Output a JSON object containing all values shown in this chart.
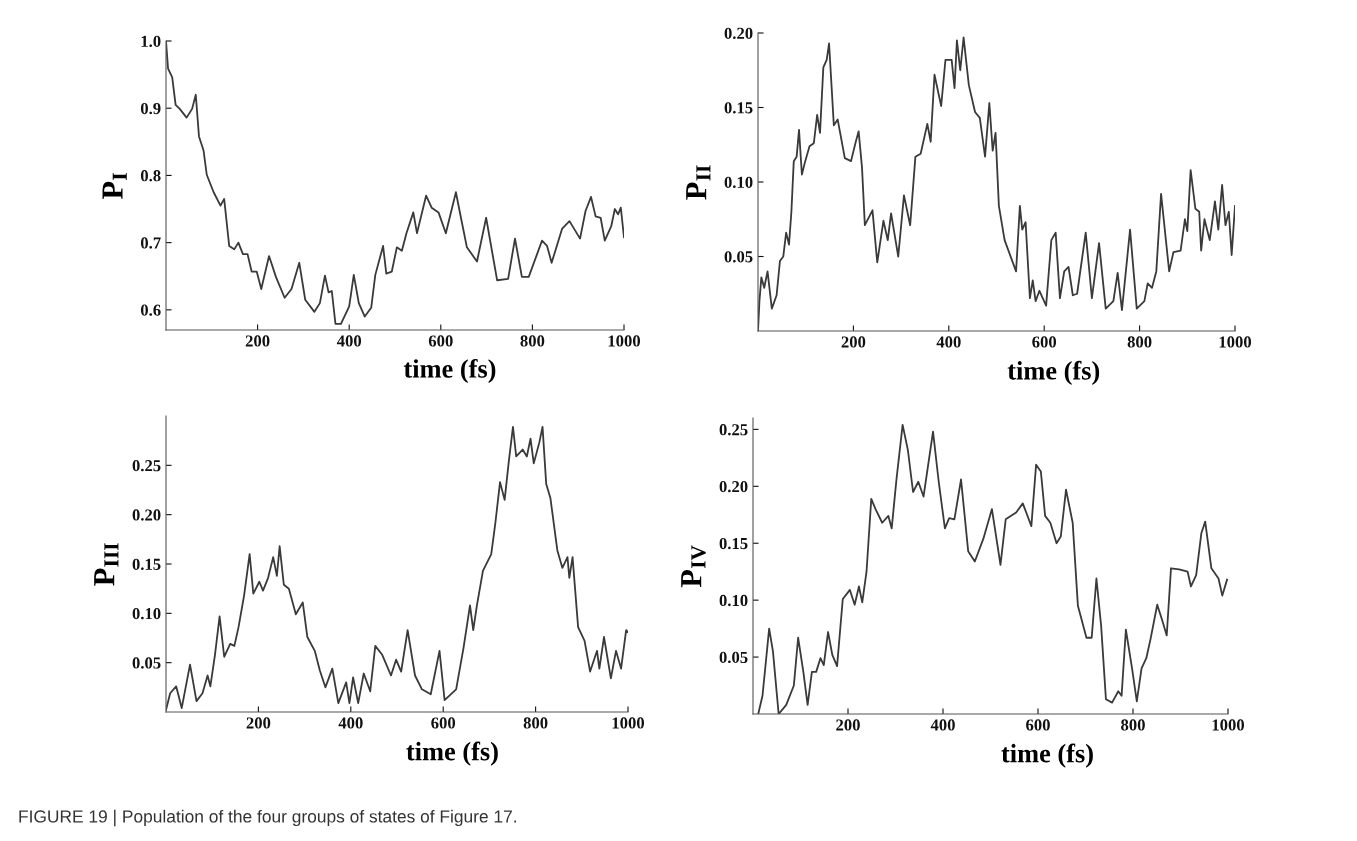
{
  "chart_data": [
    {
      "type": "line",
      "xlabel": "time (fs)",
      "ylabel": "P$_{I}$",
      "xlim": [
        0,
        1000
      ],
      "xticks": [
        200,
        400,
        600,
        800,
        1000
      ],
      "ylim": [
        0.57,
        1.0
      ],
      "yticks": [
        0.6,
        0.7,
        0.8,
        0.9,
        {
          "value": 1.0,
          "label": "1.0"
        }
      ],
      "grid": false,
      "legend": false,
      "annotations": [
        "FIGURE 19 | Population of the four groups of states of Figure 17."
      ],
      "series": [
        {
          "color": "#3a3a3a",
          "x": [
            0,
            4.5,
            13.6,
            21,
            30,
            45,
            57,
            65,
            72,
            82,
            89,
            104,
            119,
            127,
            138,
            149,
            158,
            168,
            178,
            187,
            198,
            208,
            225,
            240,
            259,
            274,
            291,
            304,
            324,
            336,
            347,
            355,
            362,
            370,
            382,
            400,
            410,
            421,
            434,
            448,
            457,
            474,
            481,
            493,
            504,
            515,
            525,
            540,
            548,
            568,
            580,
            595,
            611,
            633,
            644,
            657,
            679,
            699,
            723,
            747,
            762,
            777,
            792,
            821,
            832,
            842,
            865,
            881,
            904,
            916,
            928,
            938,
            949,
            958,
            972,
            980,
            987,
            993,
            1000
          ],
          "values": [
            1.0,
            0.959,
            0.946,
            0.905,
            0.899,
            0.886,
            0.899,
            0.92,
            0.858,
            0.837,
            0.801,
            0.775,
            0.755,
            0.765,
            0.695,
            0.69,
            0.7,
            0.683,
            0.683,
            0.657,
            0.657,
            0.631,
            0.68,
            0.649,
            0.618,
            0.631,
            0.67,
            0.615,
            0.597,
            0.61,
            0.651,
            0.626,
            0.628,
            0.579,
            0.579,
            0.605,
            0.652,
            0.61,
            0.59,
            0.603,
            0.652,
            0.695,
            0.654,
            0.657,
            0.693,
            0.688,
            0.714,
            0.745,
            0.714,
            0.77,
            0.752,
            0.745,
            0.714,
            0.775,
            0.737,
            0.693,
            0.672,
            0.737,
            0.644,
            0.646,
            0.706,
            0.649,
            0.649,
            0.703,
            0.695,
            0.67,
            0.721,
            0.732,
            0.706,
            0.747,
            0.768,
            0.739,
            0.737,
            0.703,
            0.724,
            0.75,
            0.742,
            0.752,
            0.708
          ]
        }
      ]
    },
    {
      "type": "line",
      "xlabel": "time (fs)",
      "ylabel": "P$_{II}$",
      "xlim": [
        0,
        1000
      ],
      "xticks": [
        200,
        400,
        600,
        800,
        1000
      ],
      "ylim": [
        0,
        0.2
      ],
      "yticks": [
        0.05,
        {
          "value": 0.1,
          "label": "0.10"
        },
        0.15,
        {
          "value": 0.2,
          "label": "0.20"
        }
      ],
      "grid": false,
      "legend": false,
      "series": [
        {
          "color": "#3a3a3a",
          "x": [
            0,
            3,
            7,
            13,
            20,
            29,
            39,
            46,
            53,
            59,
            65,
            70,
            75,
            81,
            86,
            92,
            99,
            108,
            117,
            124,
            130,
            137,
            144,
            149,
            159,
            167,
            182,
            195,
            205,
            211,
            218,
            224,
            240,
            250,
            263,
            272,
            279,
            294,
            306,
            319,
            330,
            341,
            355,
            362,
            370,
            384,
            393,
            406,
            412,
            417,
            424,
            431,
            442,
            455,
            465,
            476,
            485,
            492,
            498,
            505,
            517,
            541,
            549,
            554,
            561,
            570,
            576,
            582,
            590,
            604,
            615,
            624,
            633,
            642,
            651,
            660,
            669,
            687,
            700,
            715,
            729,
            745,
            754,
            763,
            780,
            794,
            810,
            817,
            826,
            835,
            845,
            862,
            871,
            886,
            895,
            900,
            907,
            917,
            925,
            929,
            936,
            947,
            958,
            965,
            973,
            980,
            987,
            993,
            1000
          ],
          "values": [
            0,
            0.02,
            0.036,
            0.029,
            0.04,
            0.015,
            0.024,
            0.047,
            0.05,
            0.066,
            0.058,
            0.08,
            0.114,
            0.117,
            0.135,
            0.105,
            0.114,
            0.124,
            0.126,
            0.145,
            0.133,
            0.177,
            0.182,
            0.193,
            0.138,
            0.142,
            0.116,
            0.114,
            0.127,
            0.134,
            0.11,
            0.071,
            0.081,
            0.046,
            0.074,
            0.061,
            0.079,
            0.05,
            0.091,
            0.071,
            0.117,
            0.119,
            0.139,
            0.127,
            0.172,
            0.151,
            0.182,
            0.182,
            0.163,
            0.195,
            0.175,
            0.197,
            0.165,
            0.147,
            0.143,
            0.117,
            0.153,
            0.121,
            0.133,
            0.084,
            0.061,
            0.04,
            0.084,
            0.068,
            0.073,
            0.022,
            0.034,
            0.02,
            0.027,
            0.017,
            0.061,
            0.066,
            0.022,
            0.04,
            0.043,
            0.024,
            0.025,
            0.066,
            0.022,
            0.059,
            0.015,
            0.02,
            0.039,
            0.014,
            0.068,
            0.015,
            0.02,
            0.032,
            0.029,
            0.04,
            0.092,
            0.04,
            0.053,
            0.054,
            0.075,
            0.067,
            0.108,
            0.082,
            0.08,
            0.054,
            0.075,
            0.061,
            0.087,
            0.068,
            0.098,
            0.071,
            0.08,
            0.051,
            0.084
          ]
        }
      ]
    },
    {
      "type": "line",
      "xlabel": "time (fs)",
      "ylabel": "P$_{III}$",
      "xlim": [
        0,
        1000
      ],
      "xticks": [
        200,
        400,
        600,
        800,
        1000
      ],
      "ylim": [
        0,
        0.3
      ],
      "yticks": [
        0.05,
        {
          "value": 0.1,
          "label": "0.10"
        },
        0.15,
        {
          "value": 0.2,
          "label": "0.20"
        },
        0.25
      ],
      "grid": false,
      "legend": false,
      "series": [
        {
          "color": "#3a3a3a",
          "x": [
            0,
            9,
            22,
            34,
            52,
            66,
            79,
            90,
            96,
            106,
            116,
            126,
            139,
            148,
            157,
            169,
            181,
            189,
            202,
            210,
            221,
            232,
            240,
            246,
            255,
            266,
            281,
            296,
            306,
            322,
            333,
            345,
            360,
            373,
            390,
            397,
            405,
            416,
            428,
            442,
            453,
            468,
            487,
            498,
            509,
            523,
            539,
            554,
            573,
            592,
            603,
            628,
            644,
            658,
            665,
            673,
            686,
            704,
            713,
            723,
            733,
            742,
            751,
            758,
            772,
            781,
            789,
            796,
            808,
            815,
            823,
            832,
            847,
            858,
            869,
            873,
            880,
            892,
            906,
            918,
            933,
            938,
            948,
            963,
            974,
            985,
            996,
            1000
          ],
          "values": [
            0.002,
            0.019,
            0.026,
            0.004,
            0.048,
            0.011,
            0.019,
            0.037,
            0.026,
            0.058,
            0.097,
            0.056,
            0.069,
            0.067,
            0.086,
            0.118,
            0.16,
            0.12,
            0.132,
            0.123,
            0.136,
            0.157,
            0.138,
            0.168,
            0.129,
            0.125,
            0.099,
            0.111,
            0.076,
            0.062,
            0.042,
            0.025,
            0.044,
            0.009,
            0.03,
            0.009,
            0.035,
            0.009,
            0.039,
            0.021,
            0.067,
            0.058,
            0.037,
            0.053,
            0.041,
            0.083,
            0.037,
            0.023,
            0.018,
            0.062,
            0.012,
            0.023,
            0.065,
            0.108,
            0.083,
            0.108,
            0.143,
            0.16,
            0.192,
            0.233,
            0.215,
            0.254,
            0.289,
            0.259,
            0.266,
            0.259,
            0.277,
            0.252,
            0.273,
            0.289,
            0.231,
            0.217,
            0.164,
            0.146,
            0.157,
            0.136,
            0.157,
            0.086,
            0.072,
            0.041,
            0.062,
            0.044,
            0.076,
            0.034,
            0.062,
            0.044,
            0.083,
            0.081
          ]
        }
      ]
    },
    {
      "type": "line",
      "xlabel": "time (fs)",
      "ylabel": "P$_{IV}$",
      "xlim": [
        0,
        1000
      ],
      "xticks": [
        200,
        400,
        600,
        800,
        1000
      ],
      "ylim": [
        0,
        0.26
      ],
      "yticks": [
        0.05,
        {
          "value": 0.1,
          "label": "0.10"
        },
        0.15,
        {
          "value": 0.2,
          "label": "0.20"
        },
        0.25
      ],
      "grid": false,
      "legend": false,
      "series": [
        {
          "color": "#3a3a3a",
          "x": [
            11,
            20,
            34,
            42,
            54,
            70,
            86,
            95,
            106,
            115,
            124,
            133,
            142,
            149,
            158,
            167,
            177,
            189,
            204,
            214,
            223,
            230,
            239,
            249,
            258,
            272,
            285,
            292,
            302,
            315,
            326,
            337,
            348,
            359,
            379,
            391,
            404,
            413,
            424,
            438,
            453,
            467,
            485,
            503,
            521,
            532,
            554,
            568,
            586,
            596,
            606,
            615,
            626,
            639,
            648,
            659,
            673,
            684,
            702,
            713,
            723,
            733,
            743,
            756,
            769,
            776,
            785,
            798,
            808,
            818,
            828,
            837,
            851,
            861,
            871,
            880,
            897,
            915,
            922,
            933,
            944,
            952,
            965,
            980,
            988,
            998
          ],
          "values": [
            0,
            0.016,
            0.075,
            0.055,
            0,
            0.008,
            0.025,
            0.067,
            0.037,
            0.008,
            0.037,
            0.037,
            0.049,
            0.043,
            0.072,
            0.052,
            0.042,
            0.101,
            0.109,
            0.096,
            0.112,
            0.098,
            0.125,
            0.189,
            0.18,
            0.168,
            0.174,
            0.163,
            0.206,
            0.254,
            0.232,
            0.195,
            0.204,
            0.191,
            0.248,
            0.204,
            0.163,
            0.172,
            0.171,
            0.206,
            0.143,
            0.134,
            0.154,
            0.18,
            0.131,
            0.171,
            0.177,
            0.185,
            0.165,
            0.219,
            0.213,
            0.174,
            0.168,
            0.15,
            0.156,
            0.197,
            0.168,
            0.095,
            0.067,
            0.067,
            0.119,
            0.077,
            0.013,
            0.01,
            0.02,
            0.016,
            0.074,
            0.04,
            0.011,
            0.04,
            0.049,
            0.066,
            0.096,
            0.083,
            0.069,
            0.128,
            0.127,
            0.125,
            0.112,
            0.122,
            0.159,
            0.169,
            0.128,
            0.119,
            0.104,
            0.118
          ]
        }
      ]
    }
  ]
}
